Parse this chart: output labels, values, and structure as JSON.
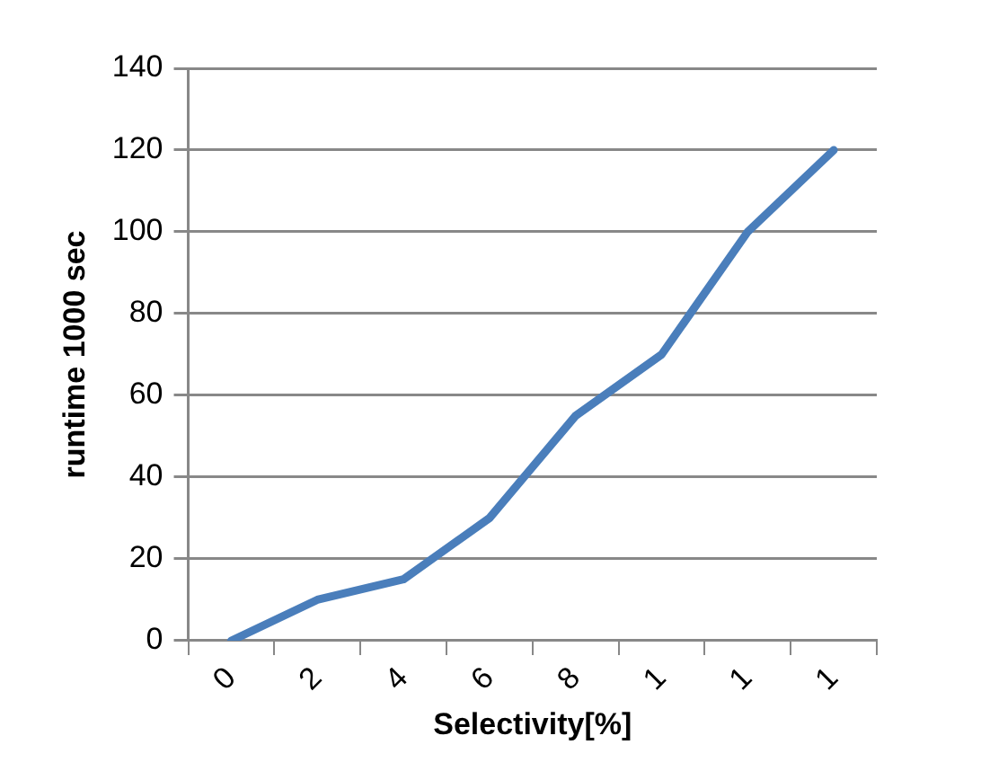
{
  "chart_data": {
    "type": "line",
    "xlabel": "Selectivity[%]",
    "ylabel": "runtime 1000 sec",
    "categories": [
      "0",
      "2",
      "4",
      "6",
      "8",
      "1",
      "1",
      "1"
    ],
    "series": [
      {
        "color": "#4a7ebb",
        "values": [
          0,
          10,
          15,
          30,
          55,
          70,
          100,
          120
        ]
      }
    ],
    "ylim": [
      0,
      140
    ],
    "yticks": [
      0,
      20,
      40,
      60,
      80,
      100,
      120,
      140
    ],
    "grid": "y",
    "legend": false,
    "marker": "none",
    "line_style": "solid"
  }
}
